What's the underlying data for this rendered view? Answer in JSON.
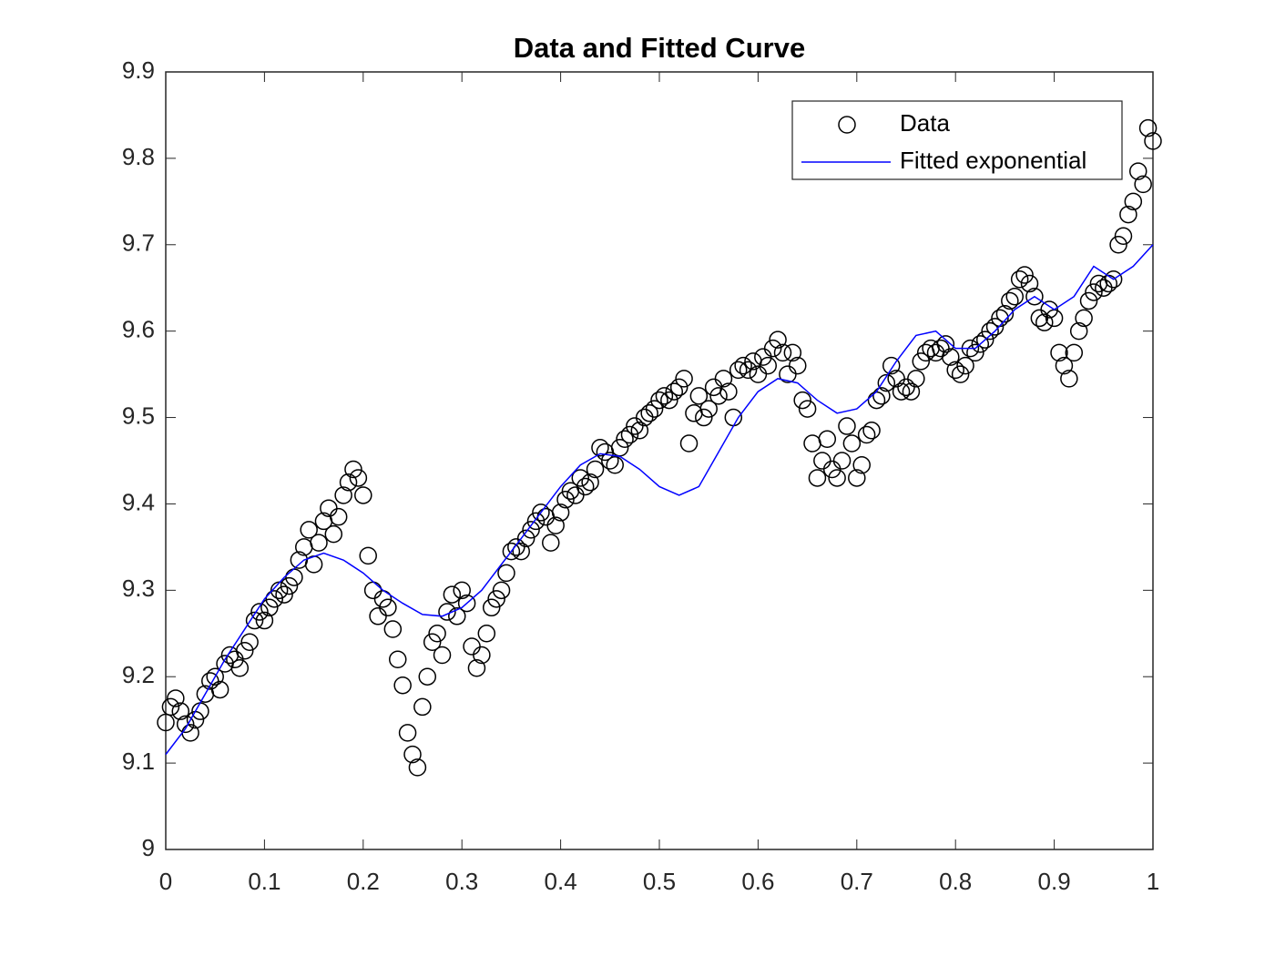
{
  "chart_data": {
    "type": "scatter-line",
    "title": "Data and Fitted Curve",
    "xlim": [
      0,
      1
    ],
    "xticks": [
      0,
      0.1,
      0.2,
      0.3,
      0.4,
      0.5,
      0.6,
      0.7,
      0.8,
      0.9,
      1
    ],
    "ylim": [
      9,
      9.9
    ],
    "yticks": [
      9,
      9.1,
      9.2,
      9.3,
      9.4,
      9.5,
      9.6,
      9.7,
      9.8,
      9.9
    ],
    "legend": "northeast",
    "series": [
      {
        "name": "Data",
        "kind": "scatter",
        "color": "#000000",
        "x": [
          0,
          0.005,
          0.01,
          0.015,
          0.02,
          0.025,
          0.03,
          0.035,
          0.04,
          0.045,
          0.05,
          0.055,
          0.06,
          0.065,
          0.07,
          0.075,
          0.08,
          0.085,
          0.09,
          0.095,
          0.1,
          0.105,
          0.11,
          0.115,
          0.12,
          0.125,
          0.13,
          0.135,
          0.14,
          0.145,
          0.15,
          0.155,
          0.16,
          0.165,
          0.17,
          0.175,
          0.18,
          0.185,
          0.19,
          0.195,
          0.2,
          0.205,
          0.21,
          0.215,
          0.22,
          0.225,
          0.23,
          0.235,
          0.24,
          0.245,
          0.25,
          0.255,
          0.26,
          0.265,
          0.27,
          0.275,
          0.28,
          0.285,
          0.29,
          0.295,
          0.3,
          0.305,
          0.31,
          0.315,
          0.32,
          0.325,
          0.33,
          0.335,
          0.34,
          0.345,
          0.35,
          0.355,
          0.36,
          0.365,
          0.37,
          0.375,
          0.38,
          0.385,
          0.39,
          0.395,
          0.4,
          0.405,
          0.41,
          0.415,
          0.42,
          0.425,
          0.43,
          0.435,
          0.44,
          0.445,
          0.45,
          0.455,
          0.46,
          0.465,
          0.47,
          0.475,
          0.48,
          0.485,
          0.49,
          0.495,
          0.5,
          0.505,
          0.51,
          0.515,
          0.52,
          0.525,
          0.53,
          0.535,
          0.54,
          0.545,
          0.55,
          0.555,
          0.56,
          0.565,
          0.57,
          0.575,
          0.58,
          0.585,
          0.59,
          0.595,
          0.6,
          0.605,
          0.61,
          0.615,
          0.62,
          0.625,
          0.63,
          0.635,
          0.64,
          0.645,
          0.65,
          0.655,
          0.66,
          0.665,
          0.67,
          0.675,
          0.68,
          0.685,
          0.69,
          0.695,
          0.7,
          0.705,
          0.71,
          0.715,
          0.72,
          0.725,
          0.73,
          0.735,
          0.74,
          0.745,
          0.75,
          0.755,
          0.76,
          0.765,
          0.77,
          0.775,
          0.78,
          0.785,
          0.79,
          0.795,
          0.8,
          0.805,
          0.81,
          0.815,
          0.82,
          0.825,
          0.83,
          0.835,
          0.84,
          0.845,
          0.85,
          0.855,
          0.86,
          0.865,
          0.87,
          0.875,
          0.88,
          0.885,
          0.89,
          0.895,
          0.9,
          0.905,
          0.91,
          0.915,
          0.92,
          0.925,
          0.93,
          0.935,
          0.94,
          0.945,
          0.95,
          0.955,
          0.96,
          0.965,
          0.97,
          0.975,
          0.98,
          0.985,
          0.99,
          0.995,
          1
        ],
        "values": [
          9.147,
          9.165,
          9.175,
          9.16,
          9.145,
          9.135,
          9.15,
          9.16,
          9.18,
          9.195,
          9.2,
          9.185,
          9.215,
          9.225,
          9.22,
          9.21,
          9.23,
          9.24,
          9.265,
          9.275,
          9.265,
          9.28,
          9.29,
          9.3,
          9.295,
          9.305,
          9.315,
          9.335,
          9.35,
          9.37,
          9.33,
          9.355,
          9.38,
          9.395,
          9.365,
          9.385,
          9.41,
          9.425,
          9.44,
          9.43,
          9.41,
          9.34,
          9.3,
          9.27,
          9.29,
          9.28,
          9.255,
          9.22,
          9.19,
          9.135,
          9.11,
          9.095,
          9.165,
          9.2,
          9.24,
          9.25,
          9.225,
          9.275,
          9.295,
          9.27,
          9.3,
          9.285,
          9.235,
          9.21,
          9.225,
          9.25,
          9.28,
          9.29,
          9.3,
          9.32,
          9.345,
          9.35,
          9.345,
          9.36,
          9.37,
          9.38,
          9.39,
          9.385,
          9.355,
          9.375,
          9.39,
          9.405,
          9.415,
          9.41,
          9.43,
          9.42,
          9.425,
          9.44,
          9.465,
          9.46,
          9.45,
          9.445,
          9.465,
          9.475,
          9.48,
          9.49,
          9.485,
          9.5,
          9.505,
          9.51,
          9.52,
          9.525,
          9.52,
          9.53,
          9.535,
          9.545,
          9.47,
          9.505,
          9.525,
          9.5,
          9.51,
          9.535,
          9.525,
          9.545,
          9.53,
          9.5,
          9.555,
          9.56,
          9.555,
          9.565,
          9.55,
          9.57,
          9.56,
          9.58,
          9.59,
          9.575,
          9.55,
          9.575,
          9.56,
          9.52,
          9.51,
          9.47,
          9.43,
          9.45,
          9.475,
          9.44,
          9.43,
          9.45,
          9.49,
          9.47,
          9.43,
          9.445,
          9.48,
          9.485,
          9.52,
          9.525,
          9.54,
          9.56,
          9.545,
          9.53,
          9.535,
          9.53,
          9.545,
          9.565,
          9.575,
          9.58,
          9.575,
          9.58,
          9.585,
          9.57,
          9.555,
          9.55,
          9.56,
          9.58,
          9.575,
          9.585,
          9.59,
          9.6,
          9.605,
          9.615,
          9.62,
          9.635,
          9.64,
          9.66,
          9.665,
          9.655,
          9.64,
          9.615,
          9.61,
          9.625,
          9.615,
          9.575,
          9.56,
          9.545,
          9.575,
          9.6,
          9.615,
          9.635,
          9.645,
          9.655,
          9.65,
          9.655,
          9.66,
          9.7,
          9.71,
          9.735,
          9.75,
          9.785,
          9.77,
          9.835,
          9.82
        ]
      },
      {
        "name": "Fitted exponential",
        "kind": "line",
        "color": "#0000ff",
        "x": [
          0,
          0.02,
          0.04,
          0.06,
          0.08,
          0.1,
          0.12,
          0.14,
          0.16,
          0.18,
          0.2,
          0.22,
          0.24,
          0.26,
          0.28,
          0.3,
          0.32,
          0.34,
          0.36,
          0.38,
          0.4,
          0.42,
          0.44,
          0.46,
          0.48,
          0.5,
          0.52,
          0.54,
          0.56,
          0.58,
          0.6,
          0.62,
          0.64,
          0.66,
          0.68,
          0.7,
          0.72,
          0.74,
          0.76,
          0.78,
          0.8,
          0.82,
          0.84,
          0.86,
          0.88,
          0.9,
          0.92,
          0.94,
          0.96,
          0.98,
          1
        ],
        "values": [
          9.11,
          9.14,
          9.18,
          9.22,
          9.255,
          9.29,
          9.315,
          9.335,
          9.343,
          9.335,
          9.32,
          9.3,
          9.285,
          9.272,
          9.27,
          9.28,
          9.3,
          9.33,
          9.36,
          9.39,
          9.42,
          9.445,
          9.458,
          9.455,
          9.44,
          9.42,
          9.41,
          9.42,
          9.46,
          9.5,
          9.53,
          9.545,
          9.54,
          9.52,
          9.505,
          9.51,
          9.53,
          9.565,
          9.595,
          9.6,
          9.58,
          9.58,
          9.6,
          9.625,
          9.64,
          9.625,
          9.64,
          9.675,
          9.66,
          9.675,
          9.7
        ]
      }
    ]
  }
}
